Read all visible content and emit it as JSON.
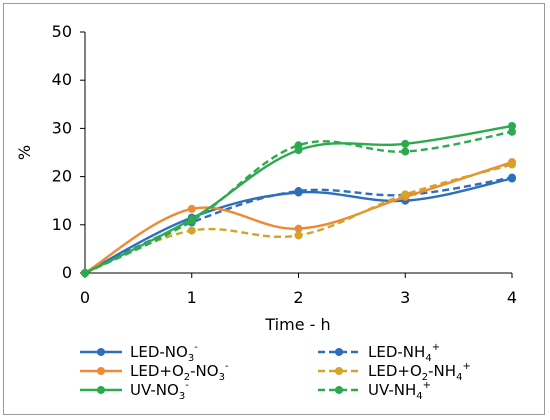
{
  "chart_data": {
    "type": "line",
    "title": "",
    "xlabel": "Time - h",
    "ylabel": "%",
    "x": [
      0,
      1,
      2,
      3,
      4
    ],
    "xlim": [
      0,
      4
    ],
    "ylim": [
      0,
      50
    ],
    "yticks": [
      0,
      10,
      20,
      30,
      40,
      50
    ],
    "xticks": [
      0,
      1,
      2,
      3,
      4
    ],
    "grid": false,
    "legend_position": "bottom",
    "series": [
      {
        "name": "LED-NO3-",
        "label_base": "LED-NO",
        "label_sub": "3",
        "label_sup": "-",
        "values": [
          0,
          11.5,
          16.7,
          15.0,
          19.6
        ],
        "color": "#2e6fbd",
        "dash": "solid"
      },
      {
        "name": "LED-NH4+",
        "label_base": "LED-NH",
        "label_sub": "4",
        "label_sup": "+",
        "values": [
          0,
          10.5,
          17.0,
          16.2,
          19.8
        ],
        "color": "#2e6fbd",
        "dash": "dashed"
      },
      {
        "name": "LED+O2-NO3-",
        "label_base": "LED+O",
        "label_sub": "2",
        "label_mid": "-NO",
        "label_sub2": "3",
        "label_sup": "-",
        "values": [
          0,
          13.3,
          9.2,
          15.8,
          23.0
        ],
        "color": "#ed8a33",
        "dash": "solid"
      },
      {
        "name": "LED+O2-NH4+",
        "label_base": "LED+O",
        "label_sub": "2",
        "label_mid": "-NH",
        "label_sub2": "4",
        "label_sup": "+",
        "values": [
          0,
          8.8,
          7.8,
          16.3,
          22.5
        ],
        "color": "#d4a429",
        "dash": "dashed"
      },
      {
        "name": "UV-NO3-",
        "label_base": "UV-NO",
        "label_sub": "3",
        "label_sup": "-",
        "values": [
          0,
          11.2,
          25.5,
          26.8,
          30.5
        ],
        "color": "#2eaa4e",
        "dash": "solid"
      },
      {
        "name": "UV-NH4+",
        "label_base": "UV-NH",
        "label_sub": "4",
        "label_sup": "+",
        "values": [
          0,
          10.8,
          26.5,
          25.2,
          29.3
        ],
        "color": "#2eaa4e",
        "dash": "dashed"
      }
    ]
  }
}
